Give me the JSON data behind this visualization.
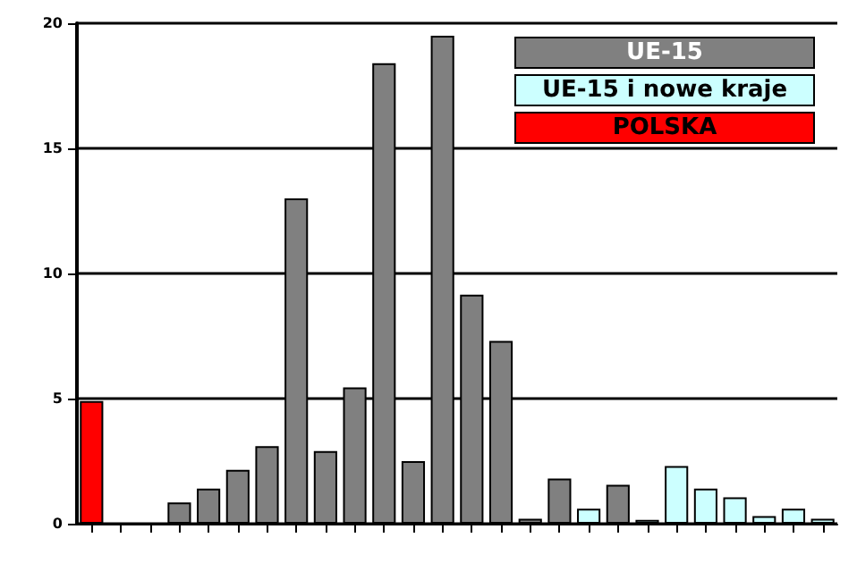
{
  "chart_data": {
    "type": "bar",
    "categories": [
      null,
      null,
      null,
      null,
      null,
      null,
      null,
      null,
      null,
      null,
      null,
      null,
      null,
      null,
      null,
      null,
      null,
      null,
      null,
      null,
      null,
      null,
      null,
      null,
      null,
      null
    ],
    "series": [
      {
        "name": "UE-15",
        "color": "#808080",
        "values": [
          null,
          null,
          null,
          0.85,
          1.4,
          2.15,
          3.1,
          13.0,
          2.9,
          5.45,
          18.4,
          2.5,
          19.5,
          9.15,
          7.3,
          0.2,
          1.8,
          null,
          1.55,
          null,
          null,
          null,
          null,
          null,
          null,
          null
        ]
      },
      {
        "name": "UE-15 i nowe kraje",
        "color": "#ccffff",
        "values": [
          null,
          null,
          null,
          null,
          null,
          null,
          null,
          null,
          null,
          null,
          null,
          null,
          null,
          null,
          null,
          null,
          null,
          0.6,
          null,
          0.15,
          2.3,
          1.4,
          1.05,
          0.3,
          0.6,
          0.2
        ]
      },
      {
        "name": "POLSKA",
        "color": "#ff0000",
        "values": [
          4.9,
          null,
          null,
          null,
          null,
          null,
          null,
          null,
          null,
          null,
          null,
          null,
          null,
          null,
          null,
          null,
          null,
          null,
          null,
          null,
          null,
          null,
          null,
          null,
          null,
          null
        ]
      }
    ],
    "ylim": [
      0,
      20
    ],
    "yticks": [
      0,
      5,
      10,
      15,
      20
    ],
    "grid": "y",
    "legend": "top right"
  }
}
